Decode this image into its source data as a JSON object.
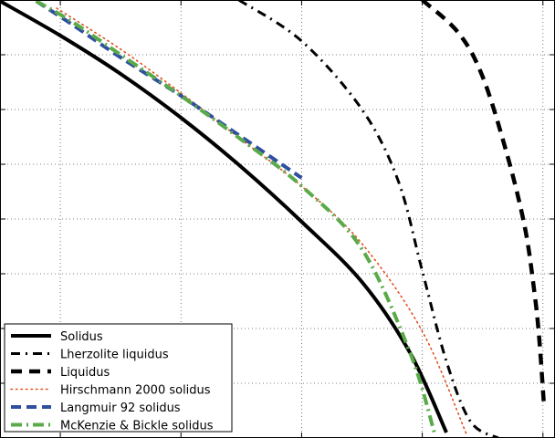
{
  "chart_data": {
    "type": "line",
    "title": "",
    "xlabel": "",
    "ylabel": "",
    "xlim": [
      0,
      4.6
    ],
    "ylim": [
      0,
      8
    ],
    "grid": true,
    "legend_position": "lower-left",
    "series": [
      {
        "name": "Solidus",
        "color": "#000000",
        "style": "solid",
        "points": [
          [
            0,
            7.98
          ],
          [
            0.5,
            7.35
          ],
          [
            1.0,
            6.65
          ],
          [
            1.5,
            5.85
          ],
          [
            2.0,
            4.95
          ],
          [
            2.5,
            3.95
          ],
          [
            3.0,
            2.85
          ],
          [
            3.4,
            1.55
          ],
          [
            3.7,
            0.1
          ]
        ]
      },
      {
        "name": "Lherzolite liquidus",
        "color": "#000000",
        "style": "dashdot",
        "points": [
          [
            1.98,
            8.0
          ],
          [
            2.5,
            7.25
          ],
          [
            3.0,
            6.0
          ],
          [
            3.3,
            4.7
          ],
          [
            3.5,
            3.05
          ],
          [
            3.7,
            1.4
          ],
          [
            3.9,
            0.3
          ],
          [
            4.13,
            0.0
          ]
        ]
      },
      {
        "name": "Liquidus",
        "color": "#000000",
        "style": "dashed",
        "points": [
          [
            3.5,
            8.0
          ],
          [
            3.8,
            7.4
          ],
          [
            4.0,
            6.6
          ],
          [
            4.2,
            5.2
          ],
          [
            4.35,
            3.85
          ],
          [
            4.43,
            2.65
          ],
          [
            4.47,
            1.8
          ],
          [
            4.51,
            0.55
          ]
        ]
      },
      {
        "name": "Hirschmann 2000 solidus",
        "color": "#e05020",
        "style": "dotted",
        "points": [
          [
            0.47,
            7.85
          ],
          [
            1.0,
            7.1
          ],
          [
            1.5,
            6.3
          ],
          [
            2.0,
            5.45
          ],
          [
            2.5,
            4.6
          ],
          [
            3.0,
            3.55
          ],
          [
            3.5,
            1.95
          ],
          [
            3.87,
            0.05
          ]
        ]
      },
      {
        "name": "Langmuir 92 solidus",
        "color": "#2f4f9f",
        "style": "dashed",
        "points": [
          [
            0.3,
            7.98
          ],
          [
            0.6,
            7.55
          ],
          [
            1.0,
            6.95
          ],
          [
            1.5,
            6.25
          ],
          [
            2.0,
            5.5
          ],
          [
            2.5,
            4.75
          ]
        ]
      },
      {
        "name": "McKenzie & Bickle solidus",
        "color": "#5aaa4a",
        "style": "dashdot",
        "points": [
          [
            0.3,
            7.98
          ],
          [
            0.6,
            7.6
          ],
          [
            1.0,
            7.0
          ],
          [
            1.5,
            6.25
          ],
          [
            2.0,
            5.45
          ],
          [
            2.5,
            4.6
          ],
          [
            3.0,
            3.45
          ],
          [
            3.4,
            1.55
          ],
          [
            3.6,
            0.1
          ]
        ]
      }
    ]
  }
}
